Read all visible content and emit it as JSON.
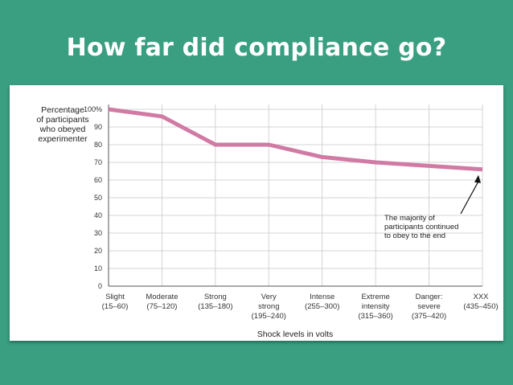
{
  "slide": {
    "title": "How far did compliance go?"
  },
  "chart_data": {
    "type": "line",
    "categories": [
      [
        "Slight",
        "(15–60)"
      ],
      [
        "Moderate",
        "(75–120)"
      ],
      [
        "Strong",
        "(135–180)"
      ],
      [
        "Very",
        "strong",
        "(195–240)"
      ],
      [
        "Intense",
        "(255–300)"
      ],
      [
        "Extreme",
        "intensity",
        "(315–360)"
      ],
      [
        "Danger:",
        "severe",
        "(375–420)"
      ],
      [
        "XXX",
        "(435–450)"
      ]
    ],
    "series": [
      {
        "values": [
          100,
          96,
          80,
          80,
          73,
          70,
          68,
          66
        ]
      }
    ],
    "ylabel": [
      "Percentage",
      "of participants",
      "who obeyed",
      "experimenter"
    ],
    "xlabel": "Shock levels in volts",
    "ylim": [
      0,
      100
    ],
    "yticks": [
      0,
      10,
      20,
      30,
      40,
      50,
      60,
      70,
      80,
      90,
      100
    ],
    "ytick_labels": [
      "0",
      "10",
      "20",
      "30",
      "40",
      "50",
      "60",
      "70",
      "80",
      "90",
      "100%"
    ],
    "annotation": [
      "The majority of",
      "participants continued",
      "to obey to the end"
    ],
    "grid": true,
    "colors": {
      "line": "#d07aa4",
      "grid": "#c8c8c8",
      "axis": "#555555"
    }
  }
}
